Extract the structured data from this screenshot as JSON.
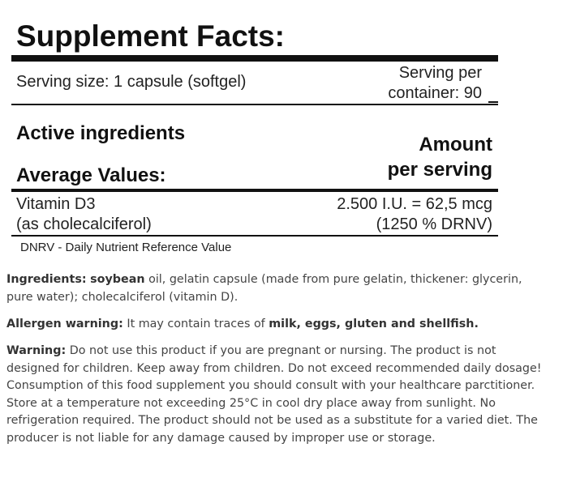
{
  "panel": {
    "title": "Supplement Facts:",
    "serving_size": "Serving size: 1 capsule (softgel)",
    "servings_per_container_line1": "Serving per",
    "servings_per_container_line2": "container: 90",
    "header_active": "Active ingredients",
    "header_average": "Average Values:",
    "header_amount_line1": "Amount",
    "header_amount_line2": "per serving",
    "ingredients_rows": [
      {
        "name_line1": "Vitamin D3",
        "name_line2": "(as cholecalciferol)",
        "amount_line1": "2.500 I.U. = 62,5 mcg",
        "amount_line2": "(1250 % DRNV)"
      }
    ],
    "footnote": "DNRV - Daily Nutrient Reference Value"
  },
  "ingredients": {
    "label": "Ingredients:",
    "bold_word": "soybean",
    "text": " oil, gelatin capsule (made from pure gelatin, thickener: glycerin, pure water); cholecalciferol (vitamin D)."
  },
  "allergen": {
    "label": "Allergen warning:",
    "text": " It may contain traces of ",
    "bold_text": "milk, eggs, gluten and shellfish."
  },
  "warning": {
    "label": "Warning:",
    "text": " Do not use this product if you are pregnant or nursing. The product is not designed for children. Keep away from children. Do not exceed recommended daily dosage! Consumption of this food supplement you should consult with your healthcare parctitioner. Store at a temperature not exceeding 25°C in cool dry place away from sunlight. No refrigeration required. The product should not be used as a substitute for a varied diet. The producer is not liable for any damage caused by improper use or storage."
  }
}
